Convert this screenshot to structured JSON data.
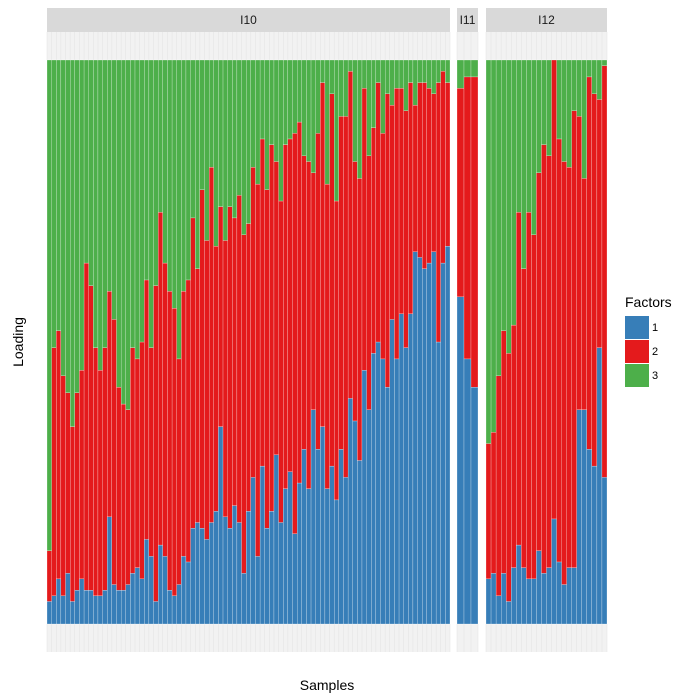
{
  "chart_data": {
    "type": "bar",
    "stacked": true,
    "xlabel": "Samples",
    "ylabel": "Loading",
    "ylim": [
      0,
      1
    ],
    "legend": {
      "title": "Factors",
      "placement": "right",
      "entries": [
        "1",
        "2",
        "3"
      ]
    },
    "colors": {
      "1": "#377eb8",
      "2": "#e41a1c",
      "3": "#4daf4a"
    },
    "panels": [
      {
        "label": "I10",
        "samples": 87,
        "factor1": [
          0.04,
          0.05,
          0.08,
          0.05,
          0.09,
          0.04,
          0.06,
          0.08,
          0.06,
          0.06,
          0.05,
          0.05,
          0.06,
          0.19,
          0.07,
          0.06,
          0.06,
          0.07,
          0.09,
          0.1,
          0.08,
          0.15,
          0.12,
          0.04,
          0.14,
          0.12,
          0.06,
          0.05,
          0.07,
          0.12,
          0.11,
          0.17,
          0.18,
          0.17,
          0.15,
          0.18,
          0.2,
          0.35,
          0.19,
          0.17,
          0.21,
          0.18,
          0.09,
          0.2,
          0.26,
          0.12,
          0.28,
          0.17,
          0.2,
          0.3,
          0.18,
          0.24,
          0.27,
          0.16,
          0.25,
          0.31,
          0.24,
          0.38,
          0.31,
          0.35,
          0.24,
          0.28,
          0.22,
          0.31,
          0.26,
          0.4,
          0.36,
          0.29,
          0.45,
          0.38,
          0.48,
          0.5,
          0.47,
          0.42,
          0.54,
          0.47,
          0.55,
          0.49,
          0.55,
          0.66,
          0.65,
          0.63,
          0.64,
          0.66,
          0.5,
          0.64,
          0.67
        ],
        "factor2": [
          0.09,
          0.44,
          0.44,
          0.39,
          0.32,
          0.31,
          0.35,
          0.37,
          0.58,
          0.54,
          0.44,
          0.4,
          0.43,
          0.4,
          0.47,
          0.36,
          0.33,
          0.31,
          0.4,
          0.37,
          0.42,
          0.46,
          0.37,
          0.56,
          0.59,
          0.52,
          0.53,
          0.51,
          0.4,
          0.47,
          0.5,
          0.55,
          0.45,
          0.6,
          0.53,
          0.63,
          0.47,
          0.39,
          0.49,
          0.57,
          0.51,
          0.58,
          0.6,
          0.51,
          0.55,
          0.66,
          0.58,
          0.6,
          0.65,
          0.52,
          0.57,
          0.61,
          0.59,
          0.71,
          0.64,
          0.52,
          0.58,
          0.42,
          0.56,
          0.61,
          0.54,
          0.66,
          0.53,
          0.59,
          0.64,
          0.58,
          0.46,
          0.5,
          0.5,
          0.45,
          0.4,
          0.46,
          0.4,
          0.52,
          0.38,
          0.48,
          0.4,
          0.42,
          0.41,
          0.26,
          0.31,
          0.33,
          0.31,
          0.28,
          0.46,
          0.34,
          0.29
        ],
        "factor3": [
          0.87,
          0.51,
          0.48,
          0.56,
          0.59,
          0.65,
          0.59,
          0.55,
          0.36,
          0.4,
          0.51,
          0.55,
          0.51,
          0.41,
          0.46,
          0.58,
          0.61,
          0.62,
          0.51,
          0.53,
          0.5,
          0.39,
          0.51,
          0.4,
          0.27,
          0.36,
          0.41,
          0.44,
          0.53,
          0.41,
          0.39,
          0.28,
          0.37,
          0.23,
          0.32,
          0.19,
          0.33,
          0.26,
          0.32,
          0.26,
          0.28,
          0.24,
          0.31,
          0.29,
          0.19,
          0.22,
          0.14,
          0.23,
          0.15,
          0.18,
          0.25,
          0.15,
          0.14,
          0.13,
          0.11,
          0.17,
          0.18,
          0.2,
          0.13,
          0.04,
          0.22,
          0.06,
          0.25,
          0.1,
          0.1,
          0.02,
          0.18,
          0.21,
          0.05,
          0.17,
          0.12,
          0.04,
          0.13,
          0.06,
          0.08,
          0.05,
          0.05,
          0.09,
          0.04,
          0.08,
          0.04,
          0.04,
          0.05,
          0.06,
          0.04,
          0.02,
          0.04
        ]
      },
      {
        "label": "I11",
        "samples": 3,
        "factor1": [
          0.58,
          0.47,
          0.42
        ],
        "factor2": [
          0.37,
          0.5,
          0.55
        ],
        "factor3": [
          0.05,
          0.03,
          0.03
        ]
      },
      {
        "label": "I12",
        "samples": 24,
        "factor1": [
          0.08,
          0.09,
          0.05,
          0.09,
          0.04,
          0.1,
          0.14,
          0.1,
          0.08,
          0.08,
          0.13,
          0.09,
          0.1,
          0.19,
          0.11,
          0.07,
          0.1,
          0.1,
          0.38,
          0.38,
          0.31,
          0.28,
          0.49,
          0.26
        ],
        "factor2": [
          0.24,
          0.25,
          0.39,
          0.43,
          0.44,
          0.43,
          0.59,
          0.53,
          0.65,
          0.61,
          0.67,
          0.76,
          0.73,
          0.83,
          0.75,
          0.75,
          0.71,
          0.81,
          0.52,
          0.41,
          0.66,
          0.66,
          0.44,
          0.73
        ],
        "factor3": [
          0.68,
          0.66,
          0.56,
          0.48,
          0.52,
          0.47,
          0.27,
          0.37,
          0.27,
          0.31,
          0.2,
          0.15,
          0.17,
          0.0,
          0.14,
          0.18,
          0.19,
          0.09,
          0.1,
          0.21,
          0.03,
          0.06,
          0.07,
          0.01
        ]
      }
    ]
  }
}
